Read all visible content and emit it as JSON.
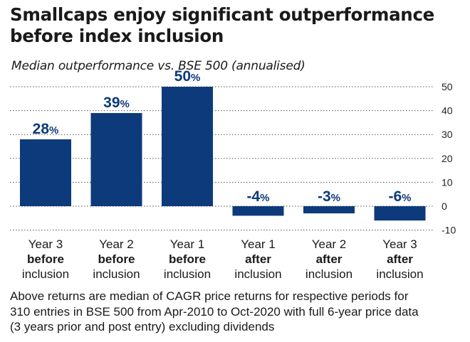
{
  "title": [
    "Smallcaps enjoy significant outperformance",
    "before index inclusion"
  ],
  "subtitle": "Median outperformance vs. BSE 500 (annualised)",
  "chart_data": {
    "type": "bar",
    "categories": [
      [
        "Year 3",
        "before",
        "inclusion"
      ],
      [
        "Year 2",
        "before",
        "inclusion"
      ],
      [
        "Year 1",
        "before",
        "inclusion"
      ],
      [
        "Year 1",
        "after",
        "inclusion"
      ],
      [
        "Year 2",
        "after",
        "inclusion"
      ],
      [
        "Year 3",
        "after",
        "inclusion"
      ]
    ],
    "values": [
      28,
      39,
      50,
      -4,
      -3,
      -6
    ],
    "data_labels": [
      "28",
      "39",
      "50",
      "-4",
      "-3",
      "-6"
    ],
    "label_unit": "%",
    "y_ticks": [
      50,
      40,
      30,
      20,
      10,
      0,
      -10
    ],
    "ylim": [
      -10,
      50
    ],
    "y_axis_side": "right",
    "grid": true,
    "bar_color": "#0d3a7a"
  },
  "note": [
    "Above returns are median of CAGR price returns for respective periods for",
    "310 entries in BSE 500 from Apr-2010 to Oct-2020 with full 6-year price data",
    "(3 years prior and post entry) excluding dividends"
  ]
}
